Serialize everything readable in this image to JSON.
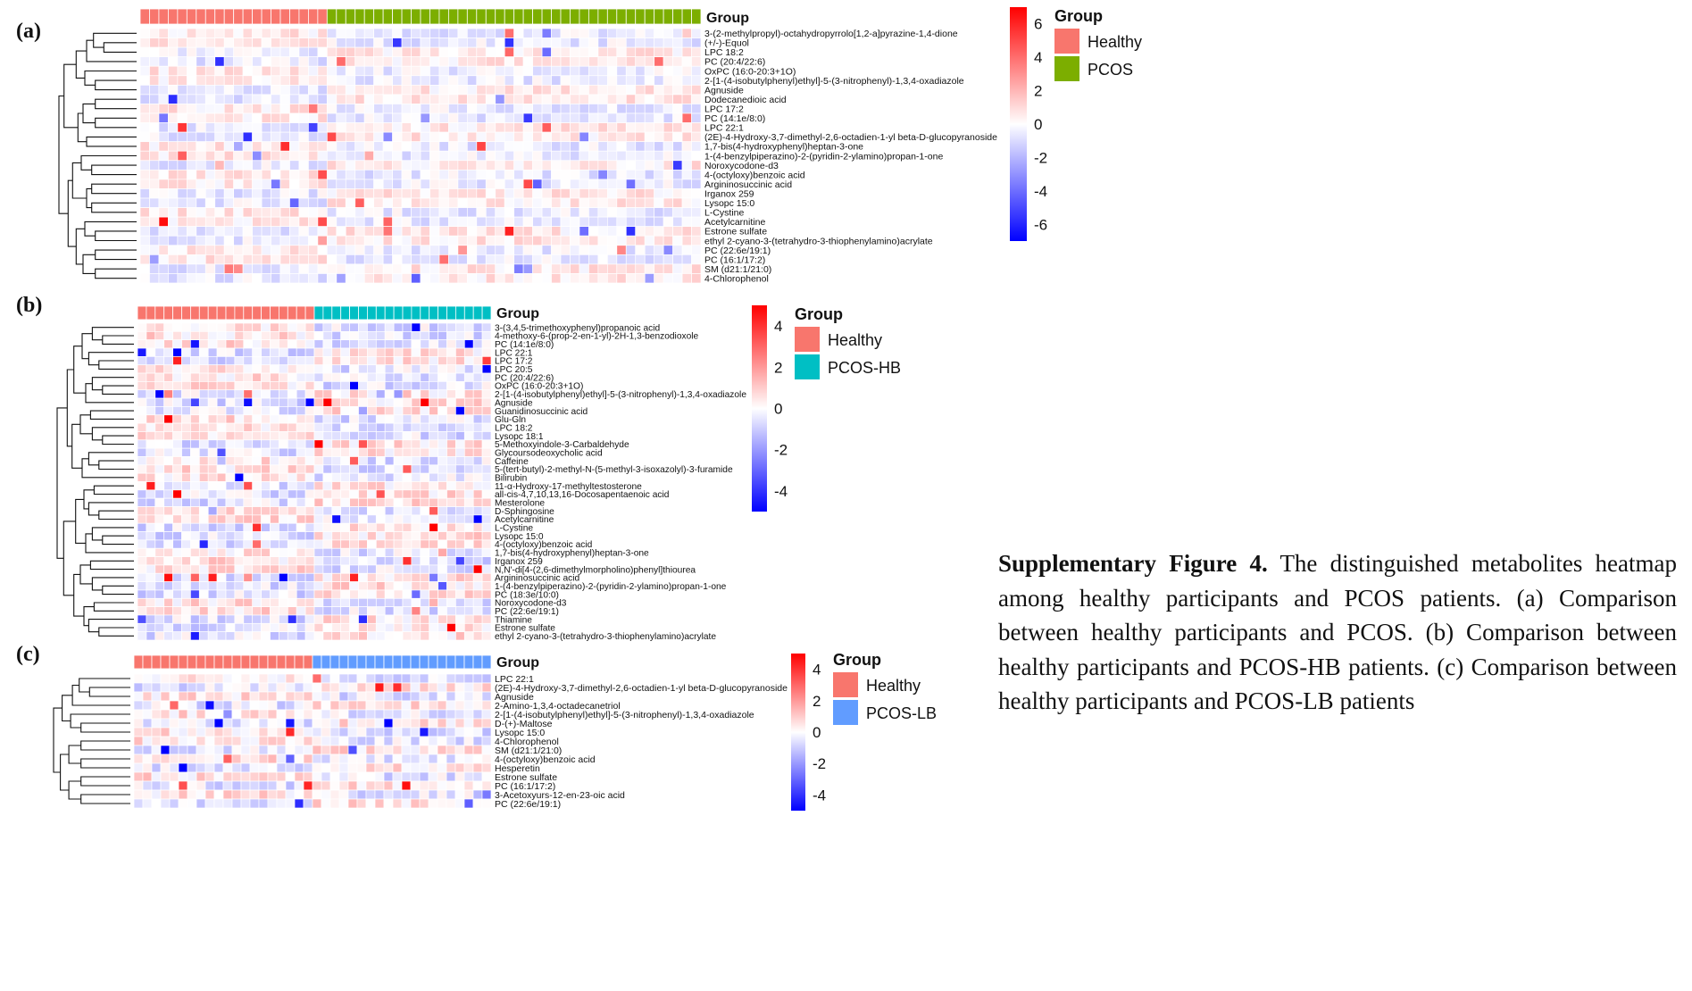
{
  "caption": {
    "lead": "Supplementary Figure 4.",
    "text": "The distinguished metabolites heatmap among healthy participants and PCOS patients. (a) Comparison between healthy participants and PCOS. (b) Comparison between healthy participants and PCOS-HB patients. (c) Comparison between healthy participants and PCOS-LB patients"
  },
  "chart_data": [
    {
      "type": "heatmap",
      "panel_label": "(a)",
      "group_title": "Group",
      "groups": [
        {
          "name": "Healthy",
          "count": 20,
          "color": "#F8766D"
        },
        {
          "name": "PCOS",
          "count": 40,
          "color": "#7CAE00"
        }
      ],
      "legend": {
        "title": "Group",
        "entries": [
          "Healthy",
          "PCOS"
        ]
      },
      "color_scale": {
        "min": -7,
        "max": 7,
        "ticks": [
          6,
          4,
          2,
          0,
          -2,
          -4,
          -6
        ],
        "low": "#0000FF",
        "mid": "#FFFFFF",
        "high": "#FF0000"
      },
      "row_names": [
        "3-(2-methylpropyl)-octahydropyrrolo[1,2-a]pyrazine-1,4-dione",
        "(+/-)-Equol",
        "LPC 18:2",
        "PC (20:4/22:6)",
        "OxPC (16:0-20:3+1O)",
        "2-[1-(4-isobutylphenyl)ethyl]-5-(3-nitrophenyl)-1,3,4-oxadiazole",
        "Agnuside",
        "Dodecanedioic acid",
        "LPC 17:2",
        "PC (14:1e/8:0)",
        "LPC 22:1",
        "(2E)-4-Hydroxy-3,7-dimethyl-2,6-octadien-1-yl beta-D-glucopyranoside",
        "1,7-bis(4-hydroxyphenyl)heptan-3-one",
        "1-(4-benzylpiperazino)-2-(pyridin-2-ylamino)propan-1-one",
        "Noroxycodone-d3",
        "4-(octyloxy)benzoic acid",
        "Argininosuccinic acid",
        "Irganox 259",
        "Lysopc 15:0",
        "L-Cystine",
        "Acetylcarnitine",
        "Estrone sulfate",
        "ethyl 2-cyano-3-(tetrahydro-3-thiophenylamino)acrylate",
        "PC (22:6e/19:1)",
        "PC (16:1/17:2)",
        "SM (d21:1/21:0)",
        "4-Chlorophenol"
      ]
    },
    {
      "type": "heatmap",
      "panel_label": "(b)",
      "group_title": "Group",
      "groups": [
        {
          "name": "Healthy",
          "count": 20,
          "color": "#F8766D"
        },
        {
          "name": "PCOS-HB",
          "count": 20,
          "color": "#00BFC4"
        }
      ],
      "legend": {
        "title": "Group",
        "entries": [
          "Healthy",
          "PCOS-HB"
        ]
      },
      "color_scale": {
        "min": -5,
        "max": 5,
        "ticks": [
          4,
          2,
          0,
          -2,
          -4
        ],
        "low": "#0000FF",
        "mid": "#FFFFFF",
        "high": "#FF0000"
      },
      "row_names": [
        "3-(3,4,5-trimethoxyphenyl)propanoic acid",
        "4-methoxy-6-(prop-2-en-1-yl)-2H-1,3-benzodioxole",
        "PC (14:1e/8:0)",
        "LPC 22:1",
        "LPC 17:2",
        "LPC 20:5",
        "PC (20:4/22:6)",
        "OxPC (16:0-20:3+1O)",
        "2-[1-(4-isobutylphenyl)ethyl]-5-(3-nitrophenyl)-1,3,4-oxadiazole",
        "Agnuside",
        "Guanidinosuccinic acid",
        "Glu-Gln",
        "LPC 18:2",
        "Lysopc 18:1",
        "5-Methoxyindole-3-Carbaldehyde",
        "Glycoursodeoxycholic acid",
        "Caffeine",
        "5-(tert-butyl)-2-methyl-N-(5-methyl-3-isoxazolyl)-3-furamide",
        "Bilirubin",
        "11-α-Hydroxy-17-methyltestosterone",
        "all-cis-4,7,10,13,16-Docosapentaenoic acid",
        "Mesterolone",
        "D-Sphingosine",
        "Acetylcarnitine",
        "L-Cystine",
        "Lysopc 15:0",
        "4-(octyloxy)benzoic acid",
        "1,7-bis(4-hydroxyphenyl)heptan-3-one",
        "Irganox 259",
        "N,N'-di[4-(2,6-dimethylmorpholino)phenyl]thiourea",
        "Argininosuccinic acid",
        "1-(4-benzylpiperazino)-2-(pyridin-2-ylamino)propan-1-one",
        "PC (18:3e/10:0)",
        "Noroxycodone-d3",
        "PC (22:6e/19:1)",
        "Thiamine",
        "Estrone sulfate",
        "ethyl 2-cyano-3-(tetrahydro-3-thiophenylamino)acrylate"
      ]
    },
    {
      "type": "heatmap",
      "panel_label": "(c)",
      "group_title": "Group",
      "groups": [
        {
          "name": "Healthy",
          "count": 20,
          "color": "#F8766D"
        },
        {
          "name": "PCOS-LB",
          "count": 20,
          "color": "#619CFF"
        }
      ],
      "legend": {
        "title": "Group",
        "entries": [
          "Healthy",
          "PCOS-LB"
        ]
      },
      "color_scale": {
        "min": -5,
        "max": 5,
        "ticks": [
          4,
          2,
          0,
          -2,
          -4
        ],
        "low": "#0000FF",
        "mid": "#FFFFFF",
        "high": "#FF0000"
      },
      "row_names": [
        "LPC 22:1",
        "(2E)-4-Hydroxy-3,7-dimethyl-2,6-octadien-1-yl beta-D-glucopyranoside",
        "Agnuside",
        "2-Amino-1,3,4-octadecanetriol",
        "2-[1-(4-isobutylphenyl)ethyl]-5-(3-nitrophenyl)-1,3,4-oxadiazole",
        "D-(+)-Maltose",
        "Lysopc 15:0",
        "4-Chlorophenol",
        "SM (d21:1/21:0)",
        "4-(octyloxy)benzoic acid",
        "Hesperetin",
        "Estrone sulfate",
        "PC (16:1/17:2)",
        "3-Acetoxyurs-12-en-23-oic acid",
        "PC (22:6e/19:1)"
      ]
    }
  ]
}
